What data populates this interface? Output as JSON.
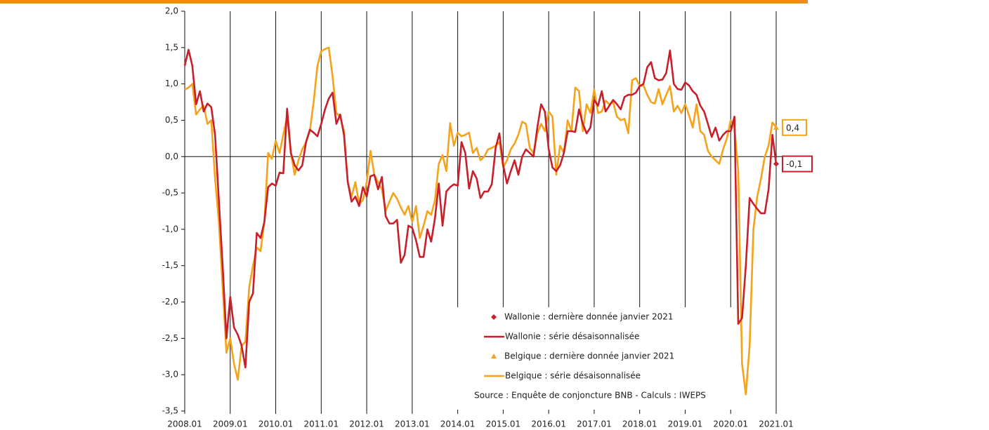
{
  "chart_data": {
    "type": "line",
    "categories": [
      "2008.01",
      null,
      null,
      null,
      null,
      null,
      null,
      null,
      null,
      null,
      null,
      null,
      "2009.01",
      null,
      null,
      null,
      null,
      null,
      null,
      null,
      null,
      null,
      null,
      null,
      "2010.01",
      null,
      null,
      null,
      null,
      null,
      null,
      null,
      null,
      null,
      null,
      null,
      "2011.01",
      null,
      null,
      null,
      null,
      null,
      null,
      null,
      null,
      null,
      null,
      null,
      "2012.01",
      null,
      null,
      null,
      null,
      null,
      null,
      null,
      null,
      null,
      null,
      null,
      "2013.01",
      null,
      null,
      null,
      null,
      null,
      null,
      null,
      null,
      null,
      null,
      null,
      "2014.01",
      null,
      null,
      null,
      null,
      null,
      null,
      null,
      null,
      null,
      null,
      null,
      "2015.01",
      null,
      null,
      null,
      null,
      null,
      null,
      null,
      null,
      null,
      null,
      null,
      "2016.01",
      null,
      null,
      null,
      null,
      null,
      null,
      null,
      null,
      null,
      null,
      null,
      "2017.01",
      null,
      null,
      null,
      null,
      null,
      null,
      null,
      null,
      null,
      null,
      null,
      "2018.01",
      null,
      null,
      null,
      null,
      null,
      null,
      null,
      null,
      null,
      null,
      null,
      "2019.01",
      null,
      null,
      null,
      null,
      null,
      null,
      null,
      null,
      null,
      null,
      null,
      "2020.01",
      null,
      null,
      null,
      null,
      null,
      null,
      null,
      null,
      null,
      null,
      null,
      "2021.01"
    ],
    "series": [
      {
        "name": "Wallonie : dernière donnée janvier 2021",
        "color": "#c8202a",
        "marker": "diamond",
        "x": [
          "2021.01"
        ],
        "values": [
          -0.1
        ],
        "value_labels": [
          "-0,1"
        ]
      },
      {
        "name": "Wallonie : série désaisonnalisée",
        "color": "#c8202a",
        "values": [
          1.25,
          1.47,
          1.25,
          0.72,
          0.9,
          0.62,
          0.73,
          0.68,
          0.3,
          -0.6,
          -1.5,
          -2.5,
          -1.93,
          -2.35,
          -2.45,
          -2.6,
          -2.9,
          -2.0,
          -1.88,
          -1.05,
          -1.12,
          -0.9,
          -0.42,
          -0.37,
          -0.4,
          -0.22,
          -0.23,
          0.66,
          0.05,
          -0.12,
          -0.19,
          -0.12,
          0.2,
          0.37,
          0.33,
          0.28,
          0.45,
          0.65,
          0.8,
          0.88,
          0.45,
          0.58,
          0.3,
          -0.35,
          -0.62,
          -0.55,
          -0.68,
          -0.42,
          -0.55,
          -0.27,
          -0.25,
          -0.45,
          -0.28,
          -0.82,
          -0.92,
          -0.92,
          -0.87,
          -1.46,
          -1.35,
          -0.95,
          -0.98,
          -1.15,
          -1.38,
          -1.38,
          -1.0,
          -1.17,
          -0.85,
          -0.37,
          -0.95,
          -0.48,
          -0.42,
          -0.38,
          -0.4,
          0.2,
          0.05,
          -0.44,
          -0.2,
          -0.3,
          -0.57,
          -0.48,
          -0.48,
          -0.38,
          0.12,
          0.32,
          -0.12,
          -0.37,
          -0.2,
          -0.05,
          -0.25,
          0.0,
          0.1,
          0.05,
          0.0,
          0.4,
          0.72,
          0.62,
          0.1,
          -0.15,
          -0.2,
          -0.12,
          0.05,
          0.35,
          0.35,
          0.34,
          0.65,
          0.45,
          0.32,
          0.4,
          0.78,
          0.7,
          0.9,
          0.62,
          0.7,
          0.78,
          0.72,
          0.65,
          0.82,
          0.85,
          0.85,
          0.88,
          0.97,
          1.0,
          1.23,
          1.3,
          1.08,
          1.05,
          1.06,
          1.15,
          1.46,
          1.0,
          0.93,
          0.92,
          1.02,
          0.98,
          0.9,
          0.85,
          0.7,
          0.62,
          0.45,
          0.27,
          0.4,
          0.22,
          0.3,
          0.35,
          0.35,
          0.55,
          -2.3,
          -2.22,
          -1.5,
          -0.57,
          -0.65,
          -0.72,
          -0.78,
          -0.78,
          -0.45,
          0.3,
          -0.1
        ]
      },
      {
        "name": "Belgique : dernière donnée janvier 2021",
        "color": "#f5a31a",
        "marker": "triangle",
        "x": [
          "2021.01"
        ],
        "values": [
          0.4
        ],
        "value_labels": [
          "0,4"
        ]
      },
      {
        "name": "Belgique : série désaisonnalisée",
        "color": "#f5a31a",
        "values": [
          0.92,
          0.95,
          1.0,
          0.58,
          0.65,
          0.7,
          0.45,
          0.5,
          -0.3,
          -0.9,
          -1.8,
          -2.7,
          -2.5,
          -2.85,
          -3.07,
          -2.6,
          -2.55,
          -1.8,
          -1.5,
          -1.25,
          -1.3,
          -0.9,
          0.05,
          -0.03,
          0.22,
          0.05,
          0.3,
          0.55,
          0.05,
          -0.25,
          -0.05,
          0.1,
          0.2,
          0.35,
          0.75,
          1.25,
          1.45,
          1.48,
          1.5,
          1.1,
          0.6,
          0.55,
          0.35,
          -0.35,
          -0.55,
          -0.35,
          -0.65,
          -0.6,
          -0.35,
          0.08,
          -0.25,
          -0.35,
          -0.45,
          -0.75,
          -0.62,
          -0.5,
          -0.58,
          -0.7,
          -0.8,
          -0.68,
          -0.9,
          -0.68,
          -1.12,
          -0.95,
          -0.75,
          -0.8,
          -0.6,
          -0.1,
          0.02,
          -0.2,
          0.46,
          0.15,
          0.33,
          0.28,
          0.3,
          0.33,
          0.05,
          0.12,
          -0.05,
          0.0,
          0.1,
          0.12,
          0.15,
          0.2,
          -0.15,
          -0.05,
          0.1,
          0.18,
          0.3,
          0.48,
          0.45,
          0.12,
          0.05,
          0.32,
          0.45,
          0.35,
          0.62,
          0.55,
          -0.25,
          0.15,
          0.05,
          0.5,
          0.35,
          0.95,
          0.9,
          0.35,
          0.72,
          0.6,
          0.92,
          0.6,
          0.62,
          0.77,
          0.72,
          0.75,
          0.55,
          0.5,
          0.52,
          0.32,
          1.05,
          1.08,
          0.97,
          0.98,
          0.85,
          0.75,
          0.73,
          0.93,
          0.72,
          0.85,
          0.97,
          0.62,
          0.7,
          0.6,
          0.72,
          0.57,
          0.4,
          0.72,
          0.35,
          0.3,
          0.08,
          0.0,
          -0.05,
          -0.1,
          0.1,
          0.25,
          0.5,
          0.4,
          -0.2,
          -2.85,
          -3.27,
          -2.6,
          -1.0,
          -0.55,
          -0.3,
          0.0,
          0.15,
          0.47,
          0.4
        ]
      }
    ],
    "ylim": [
      -3.5,
      2.0
    ],
    "yticks": [
      {
        "value": -3.5,
        "label": "-3,5"
      },
      {
        "value": -3.0,
        "label": "-3,0"
      },
      {
        "value": -2.5,
        "label": "-2,5"
      },
      {
        "value": -2.0,
        "label": "-2,0"
      },
      {
        "value": -1.5,
        "label": "-1,5"
      },
      {
        "value": -1.0,
        "label": "-1,0"
      },
      {
        "value": -0.5,
        "label": "-0,5"
      },
      {
        "value": 0.0,
        "label": "0,0"
      },
      {
        "value": 0.5,
        "label": "0,5"
      },
      {
        "value": 1.0,
        "label": "1,0"
      },
      {
        "value": 1.5,
        "label": "1,5"
      },
      {
        "value": 2.0,
        "label": "2,0"
      }
    ],
    "xgrid": true,
    "source": "Source : Enquête de conjoncture BNB - Calculs : IWEPS"
  }
}
